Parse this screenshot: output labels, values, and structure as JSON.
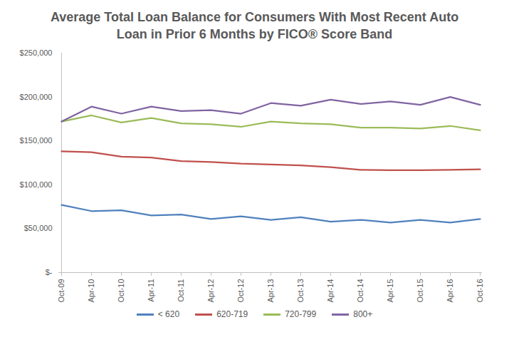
{
  "chart_data": {
    "type": "line",
    "title": "Average Total Loan Balance for Consumers With Most Recent Auto Loan in Prior 6 Months by FICO® Score Band",
    "categories": [
      "Oct-09",
      "Apr-10",
      "Oct-10",
      "Apr-11",
      "Oct-11",
      "Apr-12",
      "Oct-12",
      "Apr-13",
      "Oct-13",
      "Apr-14",
      "Oct-14",
      "Apr-15",
      "Oct-15",
      "Apr-16",
      "Oct-16"
    ],
    "series": [
      {
        "name": "< 620",
        "color": "#4f81bd",
        "values": [
          77000,
          70000,
          71000,
          65000,
          66000,
          61000,
          64000,
          60000,
          63000,
          58000,
          60000,
          57000,
          60000,
          57000,
          61000
        ]
      },
      {
        "name": "620-719",
        "color": "#c0504d",
        "values": [
          138000,
          137000,
          132000,
          131000,
          127000,
          126000,
          124000,
          123000,
          122000,
          120000,
          117000,
          116500,
          116500,
          117000,
          117500
        ]
      },
      {
        "name": "720-799",
        "color": "#9bbb59",
        "values": [
          172000,
          179000,
          171000,
          176000,
          170000,
          169000,
          166000,
          172000,
          170000,
          169000,
          165000,
          165000,
          164000,
          167000,
          162000
        ]
      },
      {
        "name": "800+",
        "color": "#8064a2",
        "values": [
          172000,
          189000,
          181000,
          189000,
          184000,
          185000,
          181000,
          193000,
          190000,
          197000,
          192000,
          195000,
          191000,
          200000,
          191000
        ]
      }
    ],
    "ylim": [
      0,
      250000
    ],
    "yticks": [
      {
        "value": 0,
        "label": "$-"
      },
      {
        "value": 50000,
        "label": "$50,000"
      },
      {
        "value": 100000,
        "label": "$100,000"
      },
      {
        "value": 150000,
        "label": "$150,000"
      },
      {
        "value": 200000,
        "label": "$200,000"
      },
      {
        "value": 250000,
        "label": "$250,000"
      }
    ],
    "grid": false,
    "legend": "bottom"
  }
}
